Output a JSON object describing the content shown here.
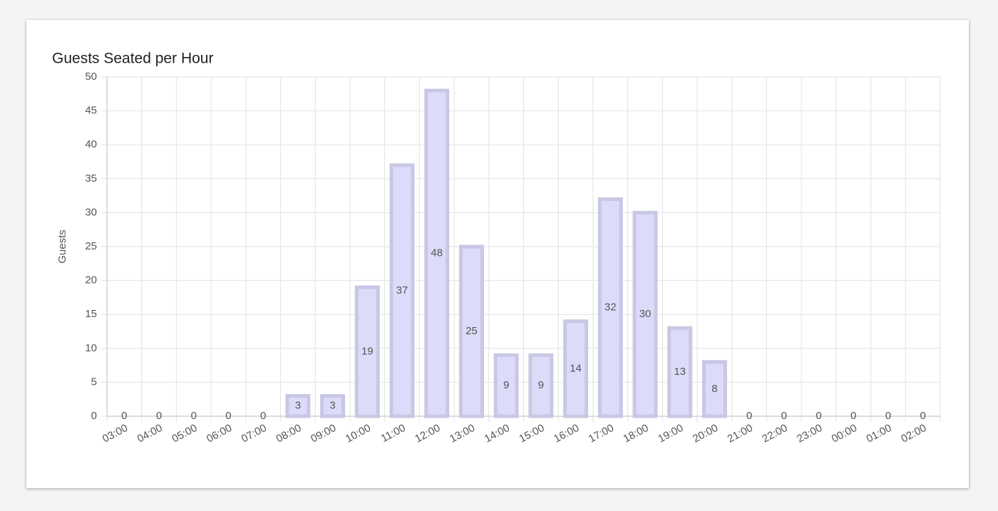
{
  "chart_data": {
    "type": "bar",
    "title": "Guests Seated per Hour",
    "ylabel": "Guests",
    "categories": [
      "03:00",
      "04:00",
      "05:00",
      "06:00",
      "07:00",
      "08:00",
      "09:00",
      "10:00",
      "11:00",
      "12:00",
      "13:00",
      "14:00",
      "15:00",
      "16:00",
      "17:00",
      "18:00",
      "19:00",
      "20:00",
      "21:00",
      "22:00",
      "23:00",
      "00:00",
      "01:00",
      "02:00"
    ],
    "values": [
      0,
      0,
      0,
      0,
      0,
      3,
      3,
      19,
      37,
      48,
      25,
      9,
      9,
      14,
      32,
      30,
      13,
      8,
      0,
      0,
      0,
      0,
      0,
      0
    ],
    "color": "#dcdcfa",
    "edge_color": "#c8c8e4",
    "ylim": [
      0,
      50
    ],
    "yticks": [
      0,
      5,
      10,
      15,
      20,
      25,
      30,
      35,
      40,
      45,
      50
    ],
    "grid": true
  }
}
